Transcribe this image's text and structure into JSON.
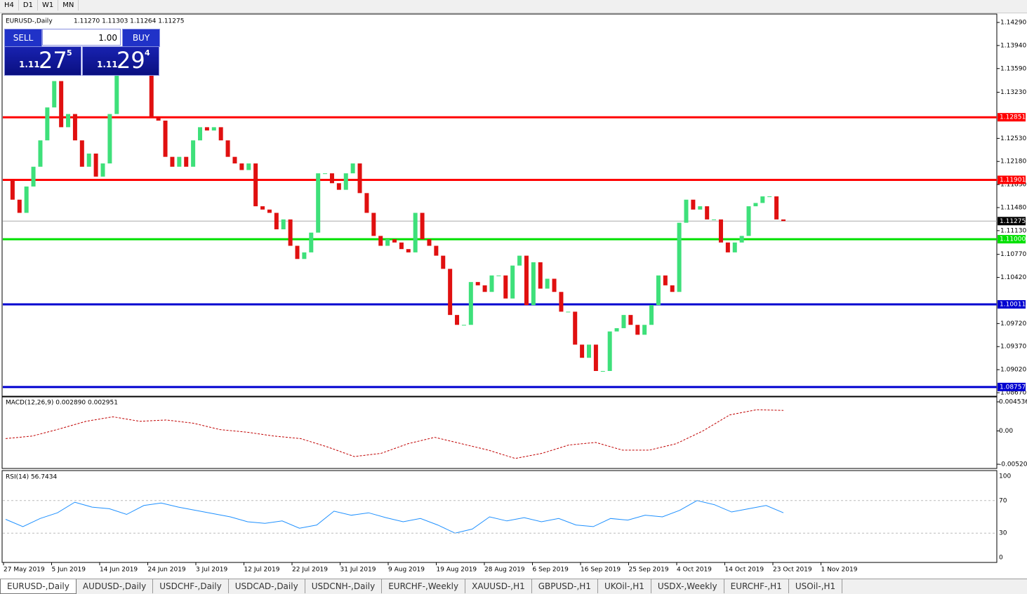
{
  "toolbar": [
    "H4",
    "D1",
    "W1",
    "MN"
  ],
  "chart_data": {
    "type": "candlestick",
    "title": "EURUSD-,Daily",
    "ohlc_text": "1.11270 1.11303 1.11264 1.11275",
    "closes": [
      1.119,
      1.116,
      1.114,
      1.118,
      1.121,
      1.125,
      1.13,
      1.134,
      1.127,
      1.129,
      1.125,
      1.121,
      1.123,
      1.1195,
      1.1215,
      1.129,
      1.136,
      1.138,
      1.14,
      1.137,
      1.1365,
      1.1285,
      1.128,
      1.1225,
      1.121,
      1.1225,
      1.121,
      1.125,
      1.127,
      1.1265,
      1.127,
      1.125,
      1.1225,
      1.1215,
      1.1205,
      1.1215,
      1.115,
      1.1145,
      1.114,
      1.1115,
      1.113,
      1.109,
      1.107,
      1.108,
      1.111,
      1.12,
      1.12,
      1.1185,
      1.1175,
      1.12,
      1.1215,
      1.117,
      1.114,
      1.1105,
      1.109,
      1.11,
      1.1095,
      1.1085,
      1.108,
      1.114,
      1.11,
      1.109,
      1.1075,
      1.1055,
      1.0985,
      1.097,
      1.097,
      1.1035,
      1.103,
      1.102,
      1.1045,
      1.1045,
      1.101,
      1.106,
      1.1075,
      1.1,
      1.1065,
      1.1025,
      1.104,
      1.102,
      1.099,
      1.099,
      1.094,
      1.092,
      1.094,
      1.09,
      1.09,
      1.096,
      1.0965,
      1.0985,
      1.097,
      1.0955,
      1.097,
      1.1,
      1.1045,
      1.103,
      1.102,
      1.1125,
      1.116,
      1.1145,
      1.115,
      1.113,
      1.113,
      1.1095,
      1.108,
      1.1095,
      1.1105,
      1.115,
      1.1155,
      1.1165,
      1.1165,
      1.113,
      1.11275
    ],
    "up_color": "#3ee07a",
    "down_color": "#e01010",
    "ylim": [
      1.0867,
      1.1429
    ],
    "yticks": [
      {
        "value": 1.1429,
        "label": "1.14290"
      },
      {
        "value": 1.1394,
        "label": "1.13940"
      },
      {
        "value": 1.1359,
        "label": "1.13590"
      },
      {
        "value": 1.1323,
        "label": "1.13230"
      },
      {
        "value": 1.1253,
        "label": "1.12530"
      },
      {
        "value": 1.1218,
        "label": "1.12180"
      },
      {
        "value": 1.1183,
        "label": "1.11830"
      },
      {
        "value": 1.1148,
        "label": "1.11480"
      },
      {
        "value": 1.1113,
        "label": "1.11130"
      },
      {
        "value": 1.1077,
        "label": "1.10770"
      },
      {
        "value": 1.1042,
        "label": "1.10420"
      },
      {
        "value": 1.0972,
        "label": "1.09720"
      },
      {
        "value": 1.0937,
        "label": "1.09370"
      },
      {
        "value": 1.0902,
        "label": "1.09020"
      },
      {
        "value": 1.0867,
        "label": "1.08670"
      }
    ],
    "levels": [
      {
        "value": 1.12851,
        "label": "1.12851",
        "color": "#ff0000"
      },
      {
        "value": 1.11901,
        "label": "1.11901",
        "color": "#ff0000"
      },
      {
        "value": 1.11,
        "label": "1.11000",
        "color": "#00e000"
      },
      {
        "value": 1.10011,
        "label": "1.10011",
        "color": "#0000d0"
      },
      {
        "value": 1.08757,
        "label": "1.08757",
        "color": "#0000d0"
      }
    ],
    "current": {
      "value": 1.11275,
      "label": "1.11275"
    },
    "x_labels": [
      "27 May 2019",
      "5 Jun 2019",
      "14 Jun 2019",
      "24 Jun 2019",
      "3 Jul 2019",
      "12 Jul 2019",
      "22 Jul 2019",
      "31 Jul 2019",
      "9 Aug 2019",
      "19 Aug 2019",
      "28 Aug 2019",
      "6 Sep 2019",
      "16 Sep 2019",
      "25 Sep 2019",
      "4 Oct 2019",
      "14 Oct 2019",
      "23 Oct 2019",
      "1 Nov 2019"
    ],
    "macd": {
      "title": "MACD(12,26,9) 0.002890 0.002951",
      "ylim": [
        -0.005205,
        0.004536
      ],
      "yticks": [
        {
          "value": 0.004536,
          "label": "0.004536"
        },
        {
          "value": 0,
          "label": "0.00"
        },
        {
          "value": -0.005205,
          "label": "-0.005205"
        }
      ],
      "color": "#c00000",
      "signal": [
        -0.0012,
        -0.0008,
        0.0003,
        0.0015,
        0.0022,
        0.0015,
        0.0017,
        0.0012,
        0.0002,
        -0.0002,
        -0.0008,
        -0.0012,
        -0.0025,
        -0.004,
        -0.0035,
        -0.002,
        -0.001,
        -0.002,
        -0.003,
        -0.0043,
        -0.0035,
        -0.0022,
        -0.0018,
        -0.003,
        -0.003,
        -0.002,
        0,
        0.0025,
        0.0033,
        0.0032
      ]
    },
    "rsi": {
      "title": "RSI(14) 56.7434",
      "ylim": [
        0,
        100
      ],
      "yticks": [
        100,
        70,
        30,
        0
      ],
      "color": "#1e90ff",
      "values": [
        47,
        38,
        48,
        55,
        68,
        62,
        60,
        53,
        64,
        67,
        62,
        58,
        54,
        50,
        44,
        42,
        45,
        36,
        40,
        57,
        52,
        55,
        49,
        44,
        48,
        40,
        30,
        35,
        50,
        45,
        49,
        44,
        48,
        40,
        38,
        48,
        46,
        52,
        50,
        58,
        70,
        65,
        56,
        60,
        64,
        55
      ]
    }
  },
  "trade_panel": {
    "sell": "SELL",
    "lot": "1.00",
    "buy": "BUY",
    "bid_small": "1.11",
    "bid_big": "27",
    "bid_pip": "5",
    "ask_small": "1.11",
    "ask_big": "29",
    "ask_pip": "4"
  },
  "tabs": [
    "EURUSD-,Daily",
    "AUDUSD-,Daily",
    "USDCHF-,Daily",
    "USDCAD-,Daily",
    "USDCNH-,Daily",
    "EURCHF-,Weekly",
    "XAUUSD-,H1",
    "GBPUSD-,H1",
    "UKOil-,H1",
    "USDX-,Weekly",
    "EURCHF-,H1",
    "USOil-,H1"
  ]
}
